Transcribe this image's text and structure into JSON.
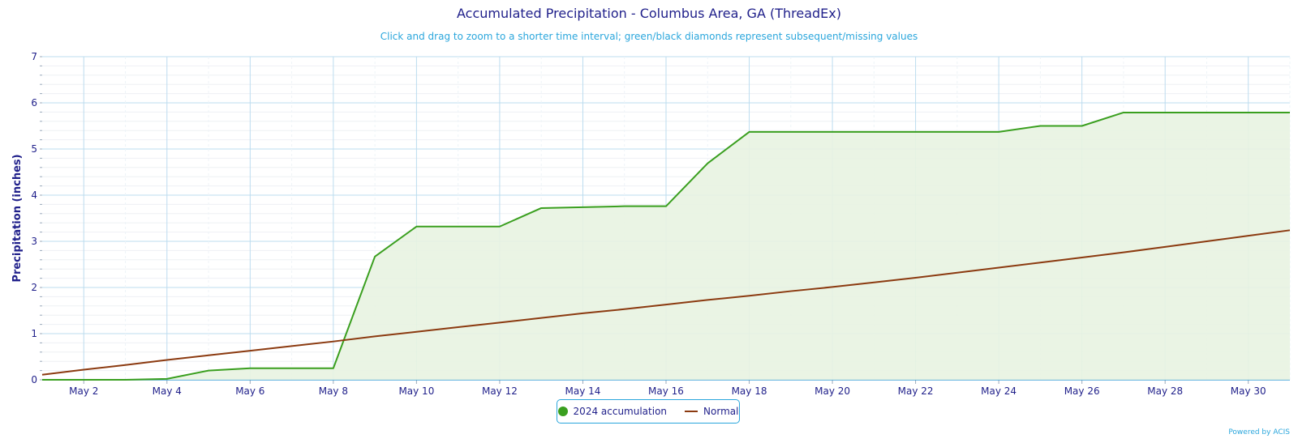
{
  "chart_data": {
    "type": "area",
    "title": "Accumulated Precipitation - Columbus Area, GA (ThreadEx)",
    "subtitle": "Click and drag to zoom to a shorter time interval; green/black diamonds represent subsequent/missing values",
    "xlabel": "",
    "ylabel": "Precipitation (inches)",
    "ylim": [
      0,
      7
    ],
    "yticks": [
      "0",
      "1",
      "2",
      "3",
      "4",
      "5",
      "6",
      "7"
    ],
    "xticks": [
      "May 2",
      "May 4",
      "May 6",
      "May 8",
      "May 10",
      "May 12",
      "May 14",
      "May 16",
      "May 18",
      "May 20",
      "May 22",
      "May 24",
      "May 26",
      "May 28",
      "May 30"
    ],
    "x": [
      "May 1",
      "May 2",
      "May 3",
      "May 4",
      "May 5",
      "May 6",
      "May 7",
      "May 8",
      "May 9",
      "May 10",
      "May 11",
      "May 12",
      "May 13",
      "May 14",
      "May 15",
      "May 16",
      "May 17",
      "May 18",
      "May 19",
      "May 20",
      "May 21",
      "May 22",
      "May 23",
      "May 24",
      "May 25",
      "May 26",
      "May 27",
      "May 28",
      "May 29",
      "May 30",
      "May 31"
    ],
    "series": [
      {
        "name": "2024 accumulation",
        "color": "#3a9f1f",
        "fill": "#e8f3e1",
        "values": [
          0.0,
          0.0,
          0.0,
          0.02,
          0.2,
          0.25,
          0.25,
          0.25,
          2.67,
          3.32,
          3.32,
          3.32,
          3.72,
          3.74,
          3.76,
          3.76,
          4.69,
          5.37,
          5.37,
          5.37,
          5.37,
          5.37,
          5.37,
          5.37,
          5.5,
          5.5,
          5.79,
          5.79,
          5.79,
          5.79,
          5.79
        ]
      },
      {
        "name": "Normal",
        "color": "#8b3a10",
        "values": [
          0.11,
          0.22,
          0.32,
          0.43,
          0.53,
          0.63,
          0.73,
          0.83,
          0.94,
          1.04,
          1.14,
          1.24,
          1.34,
          1.44,
          1.53,
          1.63,
          1.73,
          1.82,
          1.92,
          2.01,
          2.11,
          2.21,
          2.32,
          2.43,
          2.54,
          2.65,
          2.76,
          2.88,
          3.0,
          3.12,
          3.24
        ]
      }
    ],
    "grid": true,
    "legend_position": "bottom-center",
    "credits": "Powered by ACIS"
  }
}
